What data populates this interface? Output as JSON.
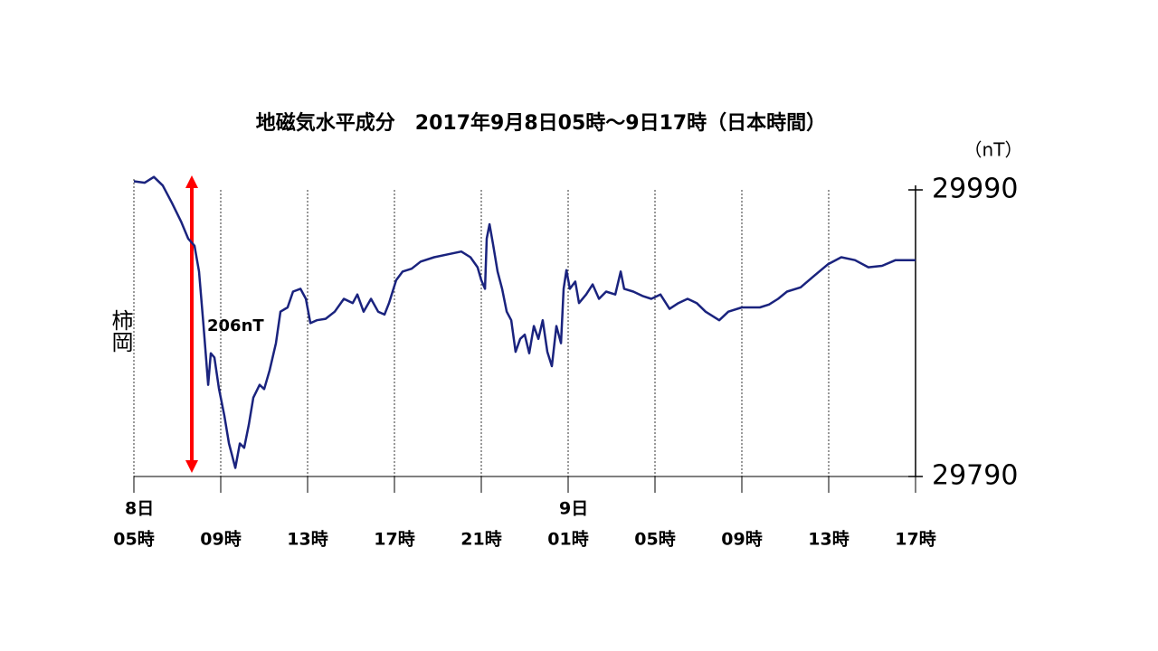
{
  "chart_data": {
    "type": "line",
    "title": "地磁気水平成分　2017年9月8日05時～9日17時（日本時間）",
    "y_axis_label": "（nT）",
    "station_label": "柿岡",
    "annotation": "206nT",
    "xlim": [
      0,
      36
    ],
    "ylim": [
      29790,
      29990
    ],
    "yticks": [
      29790,
      29990
    ],
    "xticks": [
      {
        "value": 0,
        "label": "05時"
      },
      {
        "value": 4,
        "label": "09時"
      },
      {
        "value": 8,
        "label": "13時"
      },
      {
        "value": 12,
        "label": "17時"
      },
      {
        "value": 16,
        "label": "21時"
      },
      {
        "value": 20,
        "label": "01時"
      },
      {
        "value": 24,
        "label": "05時"
      },
      {
        "value": 28,
        "label": "09時"
      },
      {
        "value": 32,
        "label": "13時"
      },
      {
        "value": 36,
        "label": "17時"
      }
    ],
    "date_labels": [
      {
        "value": 0,
        "label": "8日"
      },
      {
        "value": 20,
        "label": "9日"
      }
    ],
    "grid": true,
    "series": [
      {
        "name": "柿岡",
        "color": "#1a237e",
        "x": [
          0,
          0.5,
          0.92,
          1.33,
          1.75,
          2.17,
          2.5,
          2.79,
          3,
          3.21,
          3.42,
          3.54,
          3.71,
          3.92,
          4.17,
          4.38,
          4.5,
          4.67,
          4.88,
          5.08,
          5.29,
          5.5,
          5.79,
          6,
          6.25,
          6.54,
          6.75,
          7.08,
          7.33,
          7.67,
          7.92,
          8.13,
          8.42,
          8.83,
          9.25,
          9.67,
          10.08,
          10.29,
          10.58,
          10.92,
          11.25,
          11.54,
          11.75,
          12.08,
          12.38,
          12.79,
          13.21,
          13.83,
          14.46,
          15.08,
          15.5,
          15.83,
          16,
          16.17,
          16.25,
          16.38,
          16.54,
          16.75,
          16.96,
          17.17,
          17.38,
          17.58,
          17.79,
          18,
          18.21,
          18.42,
          18.63,
          18.83,
          19.04,
          19.25,
          19.46,
          19.67,
          19.79,
          19.92,
          20.08,
          20.33,
          20.5,
          20.83,
          21.13,
          21.42,
          21.75,
          22.17,
          22.42,
          22.58,
          23,
          23.42,
          23.83,
          24.25,
          24.67,
          25.08,
          25.5,
          25.92,
          26.33,
          26.96,
          27.38,
          28,
          28.83,
          29.25,
          29.67,
          30.08,
          30.71,
          31.33,
          31.96,
          32.58,
          33.21,
          33.83,
          34.46,
          35.08,
          36
        ],
        "values": [
          29996,
          29995,
          29999,
          29993,
          29981,
          29968,
          29956,
          29951,
          29933,
          29895,
          29854,
          29876,
          29873,
          29851,
          29832,
          29813,
          29806,
          29796,
          29813,
          29810,
          29826,
          29845,
          29854,
          29851,
          29864,
          29883,
          29905,
          29908,
          29919,
          29921,
          29914,
          29897,
          29899,
          29900,
          29905,
          29914,
          29911,
          29917,
          29905,
          29914,
          29905,
          29903,
          29911,
          29927,
          29933,
          29935,
          29940,
          29943,
          29945,
          29947,
          29943,
          29936,
          29927,
          29921,
          29956,
          29966,
          29952,
          29933,
          29921,
          29905,
          29899,
          29877,
          29886,
          29889,
          29876,
          29895,
          29886,
          29899,
          29877,
          29867,
          29895,
          29883,
          29921,
          29934,
          29921,
          29926,
          29911,
          29917,
          29924,
          29914,
          29919,
          29917,
          29933,
          29921,
          29919,
          29916,
          29914,
          29917,
          29907,
          29911,
          29914,
          29911,
          29905,
          29899,
          29905,
          29908,
          29908,
          29910,
          29914,
          29919,
          29922,
          29930,
          29938,
          29943,
          29941,
          29936,
          29937,
          29941,
          29941
        ]
      }
    ]
  }
}
